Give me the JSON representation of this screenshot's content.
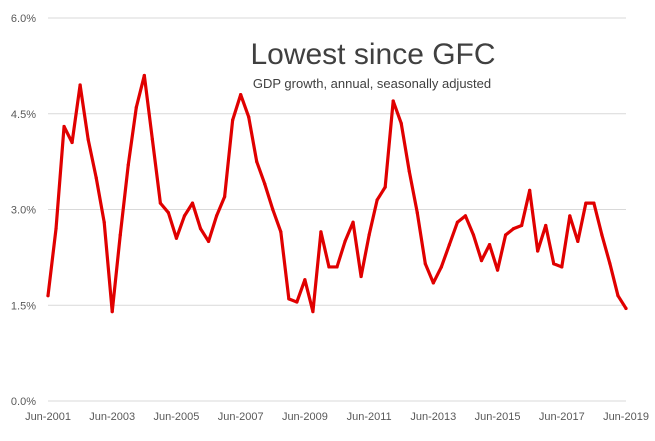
{
  "chart_data": {
    "type": "line",
    "title": "Lowest since GFC",
    "subtitle": "GDP growth, annual, seasonally adjusted",
    "xlabel": "",
    "ylabel": "",
    "ylim": [
      0,
      6
    ],
    "yticks": [
      0,
      1.5,
      3,
      4.5,
      6
    ],
    "ytick_labels": [
      "0.0%",
      "1.5%",
      "3.0%",
      "4.5%",
      "6.0%"
    ],
    "xtick_labels": [
      "Jun-2001",
      "Jun-2003",
      "Jun-2005",
      "Jun-2007",
      "Jun-2009",
      "Jun-2011",
      "Jun-2013",
      "Jun-2015",
      "Jun-2017",
      "Jun-2019"
    ],
    "x_start": "Jun-2001",
    "x_end": "Jun-2019",
    "frequency": "quarterly",
    "grid": true,
    "line_color": "#e00000",
    "grid_color": "#d9d9d9",
    "series": [
      {
        "values": [
          1.65,
          2.7,
          4.3,
          4.05,
          4.95,
          4.1,
          3.5,
          2.8,
          1.4,
          2.6,
          3.7,
          4.6,
          5.1,
          4.1,
          3.1,
          2.95,
          2.55,
          2.9,
          3.1,
          2.7,
          2.5,
          2.9,
          3.2,
          4.4,
          4.8,
          4.45,
          3.75,
          3.4,
          3.0,
          2.65,
          1.6,
          1.55,
          1.9,
          1.4,
          2.65,
          2.1,
          2.1,
          2.5,
          2.8,
          1.95,
          2.6,
          3.15,
          3.35,
          4.7,
          4.35,
          3.6,
          2.95,
          2.15,
          1.85,
          2.1,
          2.45,
          2.8,
          2.9,
          2.6,
          2.2,
          2.45,
          2.05,
          2.6,
          2.7,
          2.75,
          3.3,
          2.35,
          2.75,
          2.15,
          2.1,
          2.9,
          2.5,
          3.1,
          3.1,
          2.6,
          2.15,
          1.65,
          1.45
        ]
      }
    ]
  }
}
